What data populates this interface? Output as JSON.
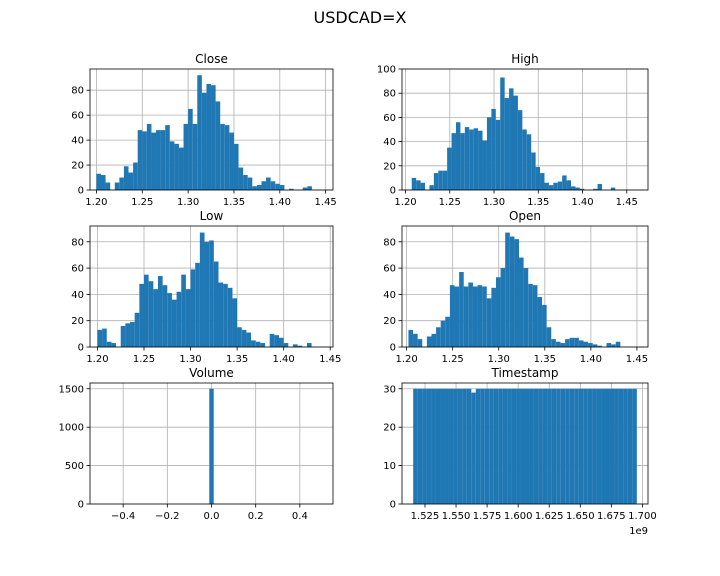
{
  "figure": {
    "title": "USDCAD=X"
  },
  "colors": {
    "bar": "#1f77b4",
    "grid": "#b0b0b0",
    "axis": "#000000"
  },
  "chart_data": [
    {
      "type": "bar",
      "title": "Close",
      "xlim": [
        1.193,
        1.458
      ],
      "ylim": [
        0,
        97
      ],
      "xticks": [
        1.2,
        1.25,
        1.3,
        1.35,
        1.4,
        1.45
      ],
      "xtick_labels": [
        "1.20",
        "1.25",
        "1.30",
        "1.35",
        "1.40",
        "1.45"
      ],
      "yticks": [
        0,
        20,
        40,
        60,
        80
      ],
      "ytick_labels": [
        "0",
        "20",
        "40",
        "60",
        "80"
      ],
      "bin_start": 1.2,
      "bin_width": 0.005,
      "values": [
        13,
        12,
        6,
        0,
        6,
        10,
        19,
        14,
        22,
        48,
        47,
        53,
        46,
        48,
        48,
        52,
        39,
        37,
        34,
        53,
        65,
        53,
        92,
        78,
        85,
        84,
        71,
        53,
        52,
        46,
        37,
        18,
        12,
        10,
        3,
        4,
        7,
        10,
        7,
        5,
        4,
        0,
        1,
        0,
        0,
        2,
        3
      ]
    },
    {
      "type": "bar",
      "title": "High",
      "xlim": [
        1.196,
        1.474
      ],
      "ylim": [
        0,
        100
      ],
      "xticks": [
        1.2,
        1.25,
        1.3,
        1.35,
        1.4,
        1.45
      ],
      "xtick_labels": [
        "1.20",
        "1.25",
        "1.30",
        "1.35",
        "1.40",
        "1.45"
      ],
      "yticks": [
        0,
        20,
        40,
        60,
        80,
        100
      ],
      "ytick_labels": [
        "0",
        "20",
        "40",
        "60",
        "80",
        "100"
      ],
      "bin_start": 1.207,
      "bin_width": 0.005,
      "values": [
        10,
        8,
        6,
        0,
        4,
        14,
        16,
        16,
        35,
        47,
        56,
        47,
        52,
        50,
        51,
        49,
        41,
        60,
        67,
        58,
        93,
        76,
        84,
        78,
        66,
        50,
        46,
        31,
        19,
        14,
        6,
        4,
        6,
        7,
        12,
        8,
        3,
        2,
        1,
        0,
        0,
        1,
        5,
        0,
        0,
        2
      ]
    },
    {
      "type": "bar",
      "title": "Low",
      "xlim": [
        1.192,
        1.453
      ],
      "ylim": [
        0,
        92
      ],
      "xticks": [
        1.2,
        1.25,
        1.3,
        1.35,
        1.4,
        1.45
      ],
      "xtick_labels": [
        "1.20",
        "1.25",
        "1.30",
        "1.35",
        "1.40",
        "1.45"
      ],
      "yticks": [
        0,
        20,
        40,
        60,
        80
      ],
      "ytick_labels": [
        "0",
        "20",
        "40",
        "60",
        "80"
      ],
      "bin_start": 1.2,
      "bin_width": 0.005,
      "values": [
        13,
        14,
        4,
        3,
        0,
        16,
        18,
        19,
        26,
        48,
        55,
        50,
        44,
        54,
        47,
        41,
        36,
        42,
        55,
        44,
        59,
        64,
        87,
        80,
        81,
        65,
        49,
        48,
        45,
        37,
        15,
        13,
        11,
        5,
        4,
        3,
        0,
        10,
        9,
        7,
        3,
        0,
        2,
        1,
        0,
        3
      ]
    },
    {
      "type": "bar",
      "title": "Open",
      "xlim": [
        1.195,
        1.462
      ],
      "ylim": [
        0,
        92
      ],
      "xticks": [
        1.2,
        1.25,
        1.3,
        1.35,
        1.4,
        1.45
      ],
      "xtick_labels": [
        "1.20",
        "1.25",
        "1.30",
        "1.35",
        "1.40",
        "1.45"
      ],
      "yticks": [
        0,
        20,
        40,
        60,
        80
      ],
      "ytick_labels": [
        "0",
        "20",
        "40",
        "60",
        "80"
      ],
      "bin_start": 1.202,
      "bin_width": 0.005,
      "values": [
        13,
        10,
        6,
        0,
        8,
        10,
        15,
        20,
        23,
        47,
        46,
        57,
        46,
        49,
        46,
        47,
        46,
        37,
        45,
        53,
        60,
        87,
        84,
        82,
        68,
        60,
        48,
        47,
        38,
        32,
        15,
        6,
        4,
        3,
        6,
        7,
        7,
        5,
        4,
        3,
        2,
        1,
        0,
        3,
        2,
        4
      ]
    },
    {
      "type": "bar",
      "title": "Volume",
      "xlim": [
        -0.55,
        0.55
      ],
      "ylim": [
        0,
        1575
      ],
      "xticks": [
        -0.4,
        -0.2,
        0.0,
        0.2,
        0.4
      ],
      "xtick_labels": [
        "−0.4",
        "−0.2",
        "0.0",
        "0.2",
        "0.4"
      ],
      "yticks": [
        0,
        500,
        1000,
        1500
      ],
      "ytick_labels": [
        "0",
        "500",
        "1000",
        "1500"
      ],
      "bin_start": -0.01,
      "bin_width": 0.02,
      "values": [
        1500
      ]
    },
    {
      "type": "bar",
      "title": "Timestamp",
      "xlim": [
        1.5065,
        1.7045
      ],
      "ylim": [
        0,
        31.5
      ],
      "xticks": [
        1.525,
        1.55,
        1.575,
        1.6,
        1.625,
        1.65,
        1.675,
        1.7
      ],
      "xtick_labels": [
        "1.525",
        "1.550",
        "1.575",
        "1.600",
        "1.625",
        "1.650",
        "1.675",
        "1.700"
      ],
      "x_offset_label": "1e9",
      "yticks": [
        0,
        10,
        20,
        30
      ],
      "ytick_labels": [
        "0",
        "10",
        "20",
        "30"
      ],
      "bin_start": 1.5155,
      "bin_width": 0.0036,
      "values": [
        30,
        30,
        30,
        30,
        30,
        30,
        30,
        30,
        30,
        30,
        30,
        30,
        30,
        29,
        30,
        30,
        30,
        30,
        30,
        30,
        30,
        30,
        30,
        30,
        30,
        30,
        30,
        30,
        30,
        30,
        30,
        30,
        30,
        30,
        30,
        30,
        30,
        30,
        30,
        30,
        30,
        30,
        30,
        30,
        30,
        30,
        30,
        30,
        30,
        30
      ]
    }
  ]
}
